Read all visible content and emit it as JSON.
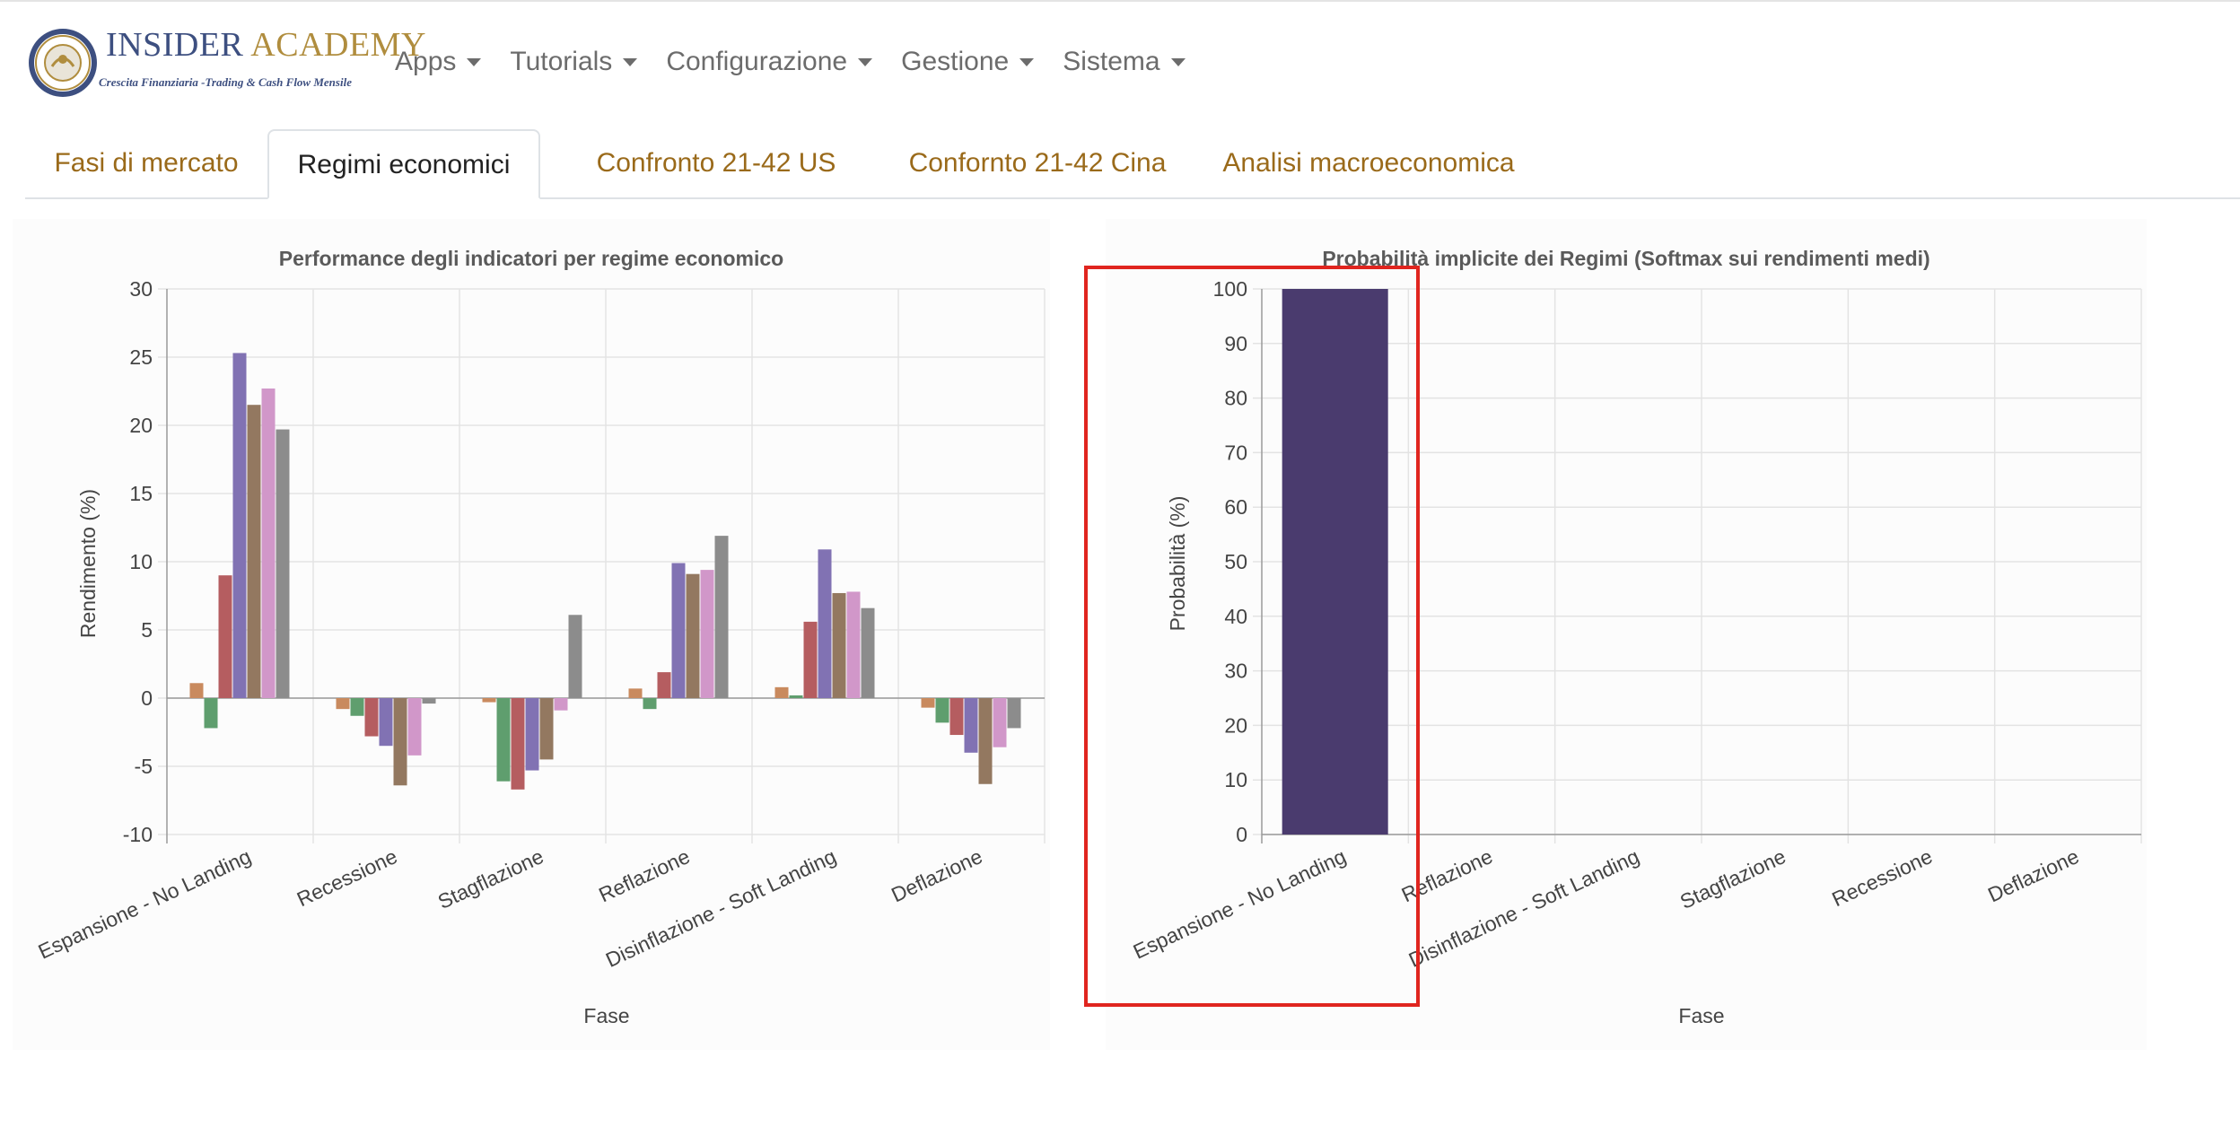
{
  "brand": {
    "name_part1": "INSIDER",
    "name_part2": "ACADEMY",
    "tagline": "Crescita Finanziaria -Trading & Cash Flow Mensile",
    "seal_text": "INSIDER ACADEMY",
    "icon": "academy-seal-icon"
  },
  "nav": [
    {
      "label": "Apps",
      "icon": "caret-down-icon"
    },
    {
      "label": "Tutorials",
      "icon": "caret-down-icon"
    },
    {
      "label": "Configurazione",
      "icon": "caret-down-icon"
    },
    {
      "label": "Gestione",
      "icon": "caret-down-icon"
    },
    {
      "label": "Sistema",
      "icon": "caret-down-icon"
    }
  ],
  "tabs": [
    {
      "label": "Fasi di mercato",
      "active": false
    },
    {
      "label": "Regimi economici",
      "active": true
    },
    {
      "label": "Confronto 21-42 US",
      "active": false
    },
    {
      "label": "Confornto 21-42 Cina",
      "active": false
    },
    {
      "label": "Analisi macroeconomica",
      "active": false
    }
  ],
  "colors": {
    "highlight": "#e0251f",
    "tab_link": "#9a6a1a",
    "probability_bar": "#4a3b6e"
  },
  "chart_data": [
    {
      "type": "bar",
      "title": "Performance degli indicatori per regime economico",
      "xlabel": "Fase",
      "ylabel": "Rendimento (%)",
      "ylim": [
        -10,
        30
      ],
      "yticks": [
        -10,
        -5,
        0,
        5,
        10,
        15,
        20,
        25,
        30
      ],
      "grid": true,
      "categories": [
        "Espansione - No Landing",
        "Recessione",
        "Stagflazione",
        "Reflazione",
        "Disinflazione - Soft Landing",
        "Deflazione"
      ],
      "series": [
        {
          "color": "#c98a5e",
          "values": [
            1.1,
            -0.8,
            -0.3,
            0.7,
            0.8,
            -0.7
          ]
        },
        {
          "color": "#5f9e6e",
          "values": [
            -2.2,
            -1.3,
            -6.1,
            -0.8,
            0.2,
            -1.8
          ]
        },
        {
          "color": "#b55d60",
          "values": [
            9.0,
            -2.8,
            -6.7,
            1.9,
            5.6,
            -2.7
          ]
        },
        {
          "color": "#8172b3",
          "values": [
            25.3,
            -3.5,
            -5.3,
            9.9,
            10.9,
            -4.0
          ]
        },
        {
          "color": "#937860",
          "values": [
            21.5,
            -6.4,
            -4.5,
            9.1,
            7.7,
            -6.3
          ]
        },
        {
          "color": "#d197c9",
          "values": [
            22.7,
            -4.2,
            -0.9,
            9.4,
            7.8,
            -3.6
          ]
        },
        {
          "color": "#8c8c8c",
          "values": [
            19.7,
            -0.4,
            6.1,
            11.9,
            6.6,
            -2.2
          ]
        }
      ]
    },
    {
      "type": "bar",
      "title": "Probabilità implicite dei Regimi (Softmax sui rendimenti medi)",
      "xlabel": "Fase",
      "ylabel": "Probabilità (%)",
      "ylim": [
        0,
        100
      ],
      "yticks": [
        0,
        10,
        20,
        30,
        40,
        50,
        60,
        70,
        80,
        90,
        100
      ],
      "grid": true,
      "categories": [
        "Espansione - No Landing",
        "Reflazione",
        "Disinflazione - Soft Landing",
        "Stagflazione",
        "Recessione",
        "Deflazione"
      ],
      "values": [
        100,
        0,
        0,
        0,
        0,
        0
      ]
    }
  ]
}
